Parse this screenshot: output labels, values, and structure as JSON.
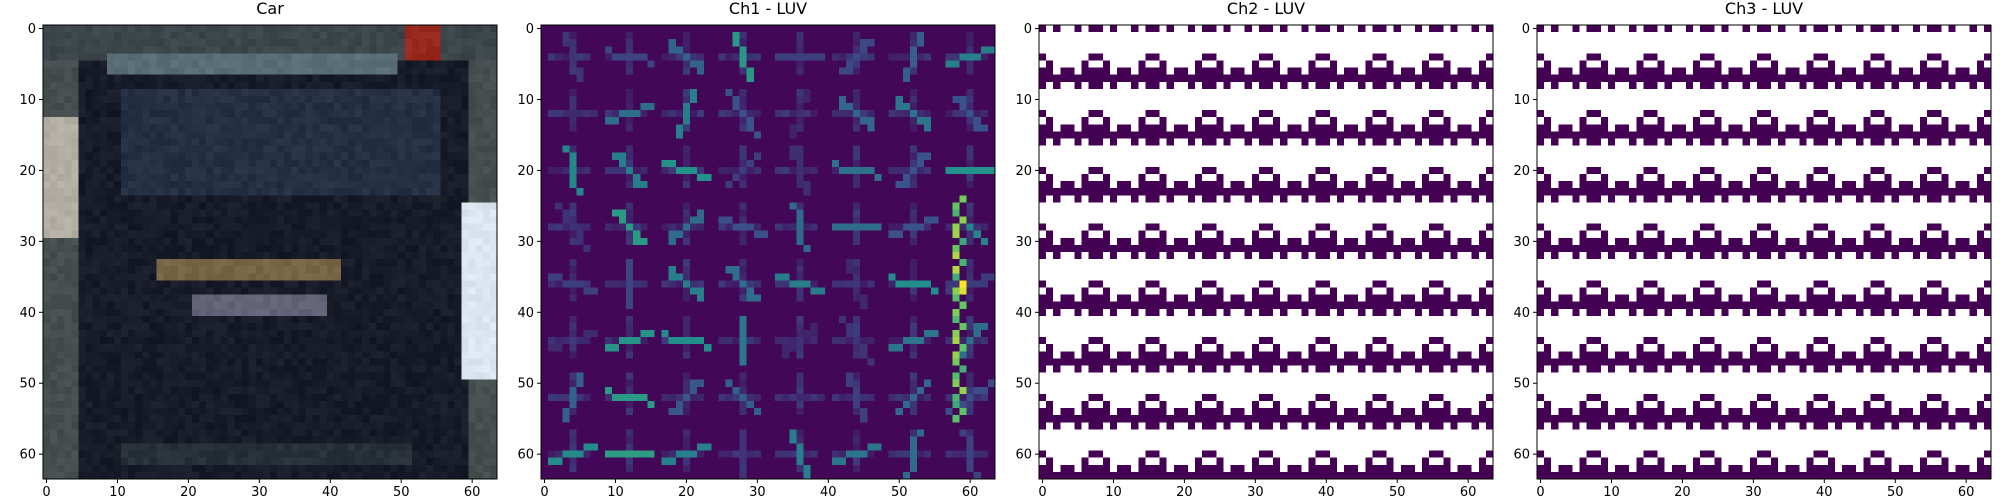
{
  "chart_data": [
    {
      "type": "image",
      "title": "Car",
      "content": "car-rear",
      "image_size": [
        64,
        64
      ],
      "xticks": [
        0,
        10,
        20,
        30,
        40,
        50,
        60
      ],
      "yticks": [
        0,
        10,
        20,
        30,
        40,
        50,
        60
      ],
      "xlim": [
        -0.5,
        63.5
      ],
      "ylim": [
        63.5,
        -0.5
      ]
    },
    {
      "type": "heatmap",
      "title": "Ch1 - LUV",
      "content": "hog",
      "colormap": "viridis",
      "image_size": [
        64,
        64
      ],
      "xticks": [
        0,
        10,
        20,
        30,
        40,
        50,
        60
      ],
      "yticks": [
        0,
        10,
        20,
        30,
        40,
        50,
        60
      ],
      "xlim": [
        -0.5,
        63.5
      ],
      "ylim": [
        63.5,
        -0.5
      ]
    },
    {
      "type": "heatmap",
      "title": "Ch2 - LUV",
      "content": "hog-uniform",
      "colormap": "viridis",
      "image_size": [
        64,
        64
      ],
      "xticks": [
        0,
        10,
        20,
        30,
        40,
        50,
        60
      ],
      "yticks": [
        0,
        10,
        20,
        30,
        40,
        50,
        60
      ],
      "xlim": [
        -0.5,
        63.5
      ],
      "ylim": [
        63.5,
        -0.5
      ]
    },
    {
      "type": "heatmap",
      "title": "Ch3 - LUV",
      "content": "hog-uniform",
      "colormap": "viridis",
      "image_size": [
        64,
        64
      ],
      "xticks": [
        0,
        10,
        20,
        30,
        40,
        50,
        60
      ],
      "yticks": [
        0,
        10,
        20,
        30,
        40,
        50,
        60
      ],
      "xlim": [
        -0.5,
        63.5
      ],
      "ylim": [
        63.5,
        -0.5
      ]
    }
  ],
  "colors": {
    "viridis_low": "#440154",
    "viridis_mid": "#21908d",
    "viridis_high": "#fde725",
    "saturated": "#ffffff",
    "axes": "#000000"
  }
}
